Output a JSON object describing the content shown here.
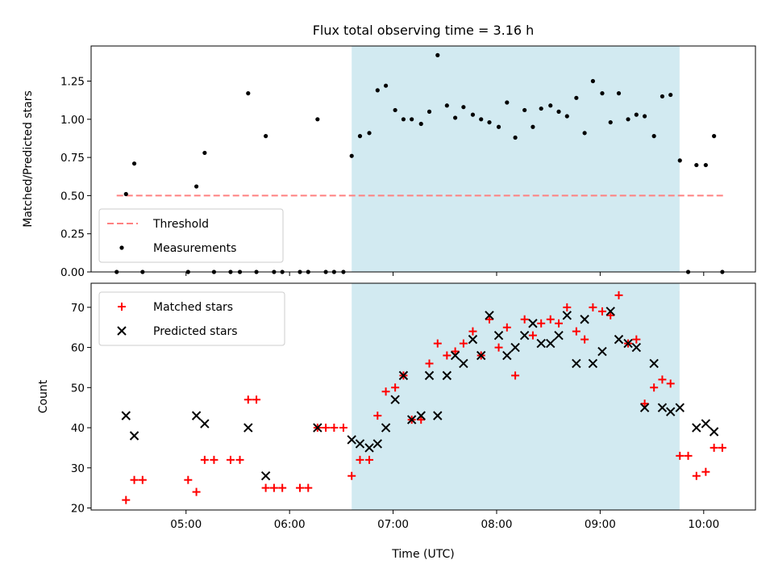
{
  "chart_data": {
    "title": "Flux total observing time = 3.16 h",
    "xlabel": "Time (UTC)",
    "x_tick_labels": [
      "05:00",
      "06:00",
      "07:00",
      "08:00",
      "09:00",
      "10:00"
    ],
    "x_ticks_hours": [
      5,
      6,
      7,
      8,
      9,
      10
    ],
    "xlim_hours": [
      4.083,
      10.5
    ],
    "highlight_span_hours": [
      6.6,
      9.767
    ],
    "highlight_color": "#add8e6",
    "panels": [
      {
        "type": "scatter",
        "ylabel": "Matched/Predicted stars",
        "ylim": [
          0,
          1.48
        ],
        "yticks": [
          0.0,
          0.25,
          0.5,
          0.75,
          1.0,
          1.25
        ],
        "ytick_labels": [
          "0.00",
          "0.25",
          "0.50",
          "0.75",
          "1.00",
          "1.25"
        ],
        "threshold": {
          "name": "Threshold",
          "value": 0.5,
          "x_range_hours": [
            4.33,
            10.2
          ],
          "color": "#ff8080"
        },
        "legend_position": "lower-left",
        "series": [
          {
            "name": "Measurements",
            "color": "#000000",
            "points": [
              [
                4.33,
                0
              ],
              [
                4.42,
                0.51
              ],
              [
                4.5,
                0.71
              ],
              [
                4.58,
                0
              ],
              [
                5.02,
                0
              ],
              [
                5.1,
                0.56
              ],
              [
                5.18,
                0.78
              ],
              [
                5.27,
                0
              ],
              [
                5.43,
                0
              ],
              [
                5.52,
                0
              ],
              [
                5.6,
                1.17
              ],
              [
                5.68,
                0
              ],
              [
                5.77,
                0.89
              ],
              [
                5.85,
                0
              ],
              [
                5.93,
                0
              ],
              [
                6.1,
                0
              ],
              [
                6.18,
                0
              ],
              [
                6.27,
                1.0
              ],
              [
                6.35,
                0
              ],
              [
                6.43,
                0
              ],
              [
                6.52,
                0
              ],
              [
                6.6,
                0.76
              ],
              [
                6.68,
                0.89
              ],
              [
                6.77,
                0.91
              ],
              [
                6.85,
                1.19
              ],
              [
                6.93,
                1.22
              ],
              [
                7.02,
                1.06
              ],
              [
                7.1,
                1.0
              ],
              [
                7.18,
                1.0
              ],
              [
                7.27,
                0.97
              ],
              [
                7.35,
                1.05
              ],
              [
                7.43,
                1.42
              ],
              [
                7.52,
                1.09
              ],
              [
                7.6,
                1.01
              ],
              [
                7.68,
                1.08
              ],
              [
                7.77,
                1.03
              ],
              [
                7.85,
                1.0
              ],
              [
                7.93,
                0.98
              ],
              [
                8.02,
                0.95
              ],
              [
                8.1,
                1.11
              ],
              [
                8.18,
                0.88
              ],
              [
                8.27,
                1.06
              ],
              [
                8.35,
                0.95
              ],
              [
                8.43,
                1.07
              ],
              [
                8.52,
                1.09
              ],
              [
                8.6,
                1.05
              ],
              [
                8.68,
                1.02
              ],
              [
                8.77,
                1.14
              ],
              [
                8.85,
                0.91
              ],
              [
                8.93,
                1.25
              ],
              [
                9.02,
                1.17
              ],
              [
                9.1,
                0.98
              ],
              [
                9.18,
                1.17
              ],
              [
                9.27,
                1.0
              ],
              [
                9.35,
                1.03
              ],
              [
                9.43,
                1.02
              ],
              [
                9.52,
                0.89
              ],
              [
                9.6,
                1.15
              ],
              [
                9.68,
                1.16
              ],
              [
                9.77,
                0.73
              ],
              [
                9.85,
                0
              ],
              [
                9.93,
                0.7
              ],
              [
                10.02,
                0.7
              ],
              [
                10.1,
                0.89
              ],
              [
                10.18,
                0
              ]
            ]
          }
        ]
      },
      {
        "type": "scatter",
        "ylabel": "Count",
        "ylim": [
          19.5,
          76
        ],
        "yticks": [
          20,
          30,
          40,
          50,
          60,
          70
        ],
        "ytick_labels": [
          "20",
          "30",
          "40",
          "50",
          "60",
          "70"
        ],
        "legend_position": "upper-left",
        "series": [
          {
            "name": "Matched stars",
            "marker": "plus",
            "color": "#ff0000",
            "points": [
              [
                4.42,
                22
              ],
              [
                4.5,
                27
              ],
              [
                4.58,
                27
              ],
              [
                5.02,
                27
              ],
              [
                5.1,
                24
              ],
              [
                5.18,
                32
              ],
              [
                5.27,
                32
              ],
              [
                5.43,
                32
              ],
              [
                5.52,
                32
              ],
              [
                5.6,
                47
              ],
              [
                5.68,
                47
              ],
              [
                5.77,
                25
              ],
              [
                5.85,
                25
              ],
              [
                5.93,
                25
              ],
              [
                6.1,
                25
              ],
              [
                6.18,
                25
              ],
              [
                6.27,
                40
              ],
              [
                6.35,
                40
              ],
              [
                6.43,
                40
              ],
              [
                6.52,
                40
              ],
              [
                6.6,
                28
              ],
              [
                6.68,
                32
              ],
              [
                6.77,
                32
              ],
              [
                6.85,
                43
              ],
              [
                6.93,
                49
              ],
              [
                7.02,
                50
              ],
              [
                7.1,
                53
              ],
              [
                7.18,
                42
              ],
              [
                7.27,
                42
              ],
              [
                7.35,
                56
              ],
              [
                7.43,
                61
              ],
              [
                7.52,
                58
              ],
              [
                7.6,
                59
              ],
              [
                7.68,
                61
              ],
              [
                7.77,
                64
              ],
              [
                7.85,
                58
              ],
              [
                7.93,
                67
              ],
              [
                8.02,
                60
              ],
              [
                8.1,
                65
              ],
              [
                8.18,
                53
              ],
              [
                8.27,
                67
              ],
              [
                8.35,
                63
              ],
              [
                8.43,
                66
              ],
              [
                8.52,
                67
              ],
              [
                8.6,
                66
              ],
              [
                8.68,
                70
              ],
              [
                8.77,
                64
              ],
              [
                8.85,
                62
              ],
              [
                8.93,
                70
              ],
              [
                9.02,
                69
              ],
              [
                9.1,
                68
              ],
              [
                9.18,
                73
              ],
              [
                9.27,
                61
              ],
              [
                9.35,
                62
              ],
              [
                9.43,
                46
              ],
              [
                9.52,
                50
              ],
              [
                9.6,
                52
              ],
              [
                9.68,
                51
              ],
              [
                9.77,
                33
              ],
              [
                9.85,
                33
              ],
              [
                9.93,
                28
              ],
              [
                10.02,
                29
              ],
              [
                10.1,
                35
              ],
              [
                10.18,
                35
              ]
            ]
          },
          {
            "name": "Predicted stars",
            "marker": "x",
            "color": "#000000",
            "points": [
              [
                4.42,
                43
              ],
              [
                4.5,
                38
              ],
              [
                5.1,
                43
              ],
              [
                5.18,
                41
              ],
              [
                5.6,
                40
              ],
              [
                5.77,
                28
              ],
              [
                6.27,
                40
              ],
              [
                6.6,
                37
              ],
              [
                6.68,
                36
              ],
              [
                6.77,
                35
              ],
              [
                6.85,
                36
              ],
              [
                6.93,
                40
              ],
              [
                7.02,
                47
              ],
              [
                7.1,
                53
              ],
              [
                7.18,
                42
              ],
              [
                7.27,
                43
              ],
              [
                7.35,
                53
              ],
              [
                7.43,
                43
              ],
              [
                7.52,
                53
              ],
              [
                7.6,
                58
              ],
              [
                7.68,
                56
              ],
              [
                7.77,
                62
              ],
              [
                7.85,
                58
              ],
              [
                7.93,
                68
              ],
              [
                8.02,
                63
              ],
              [
                8.1,
                58
              ],
              [
                8.18,
                60
              ],
              [
                8.27,
                63
              ],
              [
                8.35,
                66
              ],
              [
                8.43,
                61
              ],
              [
                8.52,
                61
              ],
              [
                8.6,
                63
              ],
              [
                8.68,
                68
              ],
              [
                8.77,
                56
              ],
              [
                8.85,
                67
              ],
              [
                8.93,
                56
              ],
              [
                9.02,
                59
              ],
              [
                9.1,
                69
              ],
              [
                9.18,
                62
              ],
              [
                9.27,
                61
              ],
              [
                9.35,
                60
              ],
              [
                9.43,
                45
              ],
              [
                9.52,
                56
              ],
              [
                9.6,
                45
              ],
              [
                9.68,
                44
              ],
              [
                9.77,
                45
              ],
              [
                9.93,
                40
              ],
              [
                10.02,
                41
              ],
              [
                10.1,
                39
              ]
            ]
          }
        ]
      }
    ]
  }
}
